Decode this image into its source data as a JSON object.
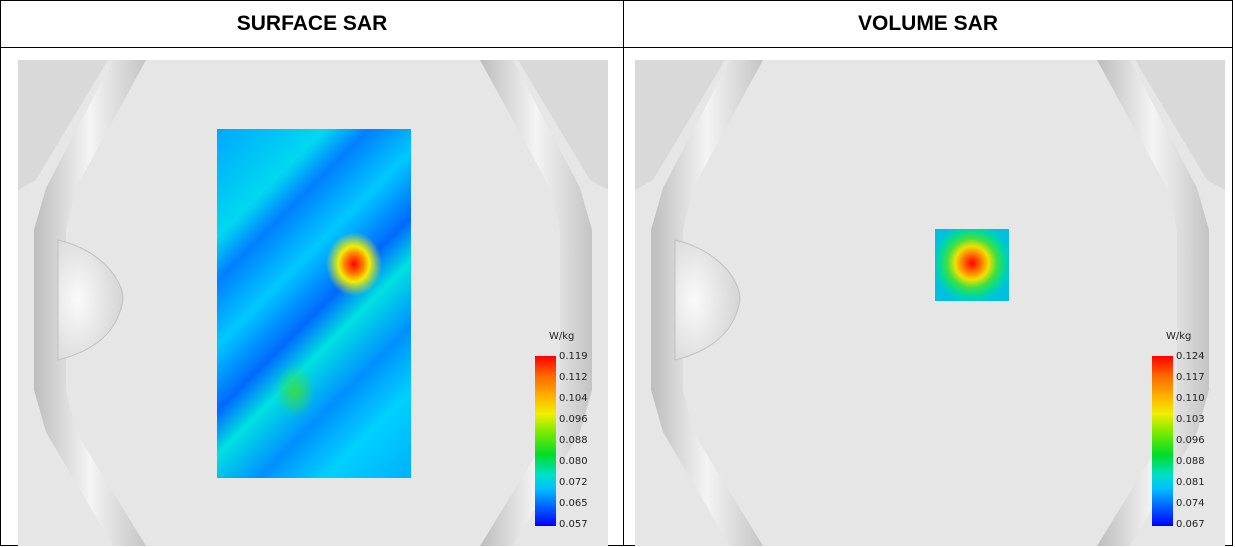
{
  "panels": [
    {
      "title": "SURFACE SAR",
      "unit": "W/kg",
      "scale": [
        "0.119",
        "0.112",
        "0.104",
        "0.096",
        "0.088",
        "0.080",
        "0.072",
        "0.065",
        "0.057"
      ],
      "colors": {
        "max": "#ff0000",
        "min": "#0000ff"
      }
    },
    {
      "title": "VOLUME SAR",
      "unit": "W/kg",
      "scale": [
        "0.124",
        "0.117",
        "0.110",
        "0.103",
        "0.096",
        "0.088",
        "0.081",
        "0.074",
        "0.067"
      ],
      "colors": {
        "max": "#ff0000",
        "min": "#0000ff"
      }
    }
  ]
}
